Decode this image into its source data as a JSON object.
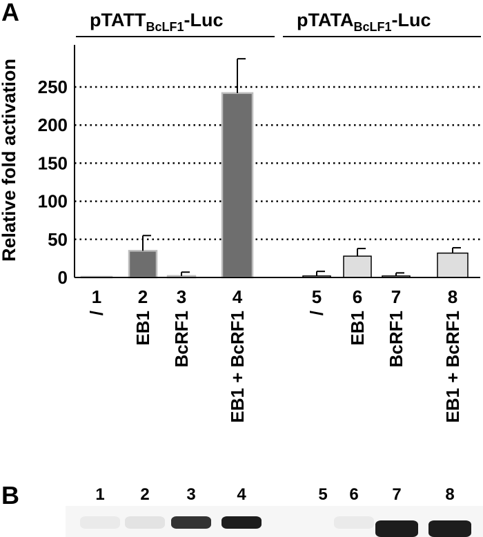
{
  "panel_a_label": "A",
  "panel_b_label": "B",
  "group_headers": [
    {
      "main": "pTATT",
      "sub": "BcLF1",
      "suffix": "-Luc"
    },
    {
      "main": "pTATA",
      "sub": "BcLF1",
      "suffix": "-Luc"
    }
  ],
  "chart_data": {
    "type": "bar",
    "ylabel": "Relative fold activation",
    "ylim": [
      0,
      300
    ],
    "yticks": [
      0,
      50,
      100,
      150,
      200,
      250
    ],
    "grid": "dotted horizontal lines at 50, 100, 150, 200, 250",
    "categories": [
      "1",
      "2",
      "3",
      "4",
      "5",
      "6",
      "7",
      "8"
    ],
    "category_labels": [
      "/",
      "EB1",
      "BcRF1",
      "EB1 + BcRF1",
      "/",
      "EB1",
      "BcRF1",
      "EB1 + BcRF1"
    ],
    "values": [
      1,
      35,
      2,
      242,
      2,
      28,
      2,
      32
    ],
    "errors": [
      0,
      20,
      5,
      45,
      6,
      10,
      4,
      7
    ],
    "groups": [
      {
        "bars": [
          0,
          1,
          2,
          3
        ],
        "color": "#6e6e6e"
      },
      {
        "bars": [
          4,
          5,
          6,
          7
        ],
        "color": "#dedede"
      }
    ]
  },
  "blot": {
    "lane_numbers": [
      "1",
      "2",
      "3",
      "4",
      "5",
      "6",
      "7",
      "8"
    ],
    "band_intensity": [
      0.05,
      0.08,
      0.85,
      0.95,
      0.0,
      0.05,
      0.95,
      0.95
    ]
  }
}
